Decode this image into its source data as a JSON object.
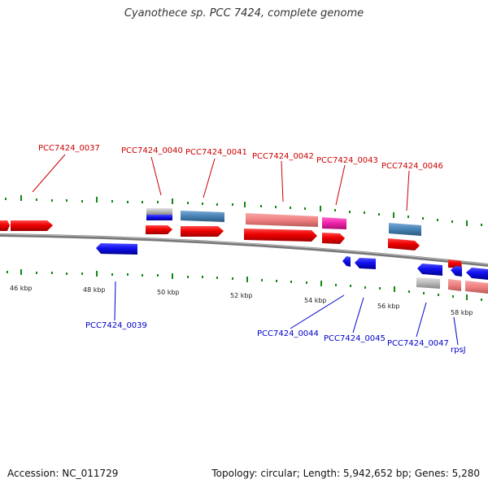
{
  "title": "Cyanothece sp. PCC 7424, complete genome",
  "accession_text": "Accession: NC_011729",
  "summary_text": "Topology: circular; Length: 5,942,652 bp; Genes: 5,280",
  "colors": {
    "forward_label": "#cc0000",
    "reverse_label": "#0000cc",
    "cds_forward": "#ee0000",
    "cds_reverse": "#1010ee",
    "backbone": "#888888",
    "tick_green": "#118811",
    "cog_salmon": "#f08080",
    "cog_steelblue": "#4682b4",
    "cog_magenta": "#ee22aa",
    "cog_grey": "#b8b8b8"
  },
  "ruler": [
    "46 kbp",
    "48 kbp",
    "50 kbp",
    "52 kbp",
    "54 kbp",
    "56 kbp",
    "58 kbp"
  ],
  "labels_top": [
    "PCC7424_0037",
    "PCC7424_0040",
    "PCC7424_0041",
    "PCC7424_0042",
    "PCC7424_0043",
    "PCC7424_0046"
  ],
  "labels_bottom": [
    "PCC7424_0039",
    "PCC7424_0044",
    "PCC7424_0045",
    "PCC7424_0047",
    "rpsJ"
  ]
}
